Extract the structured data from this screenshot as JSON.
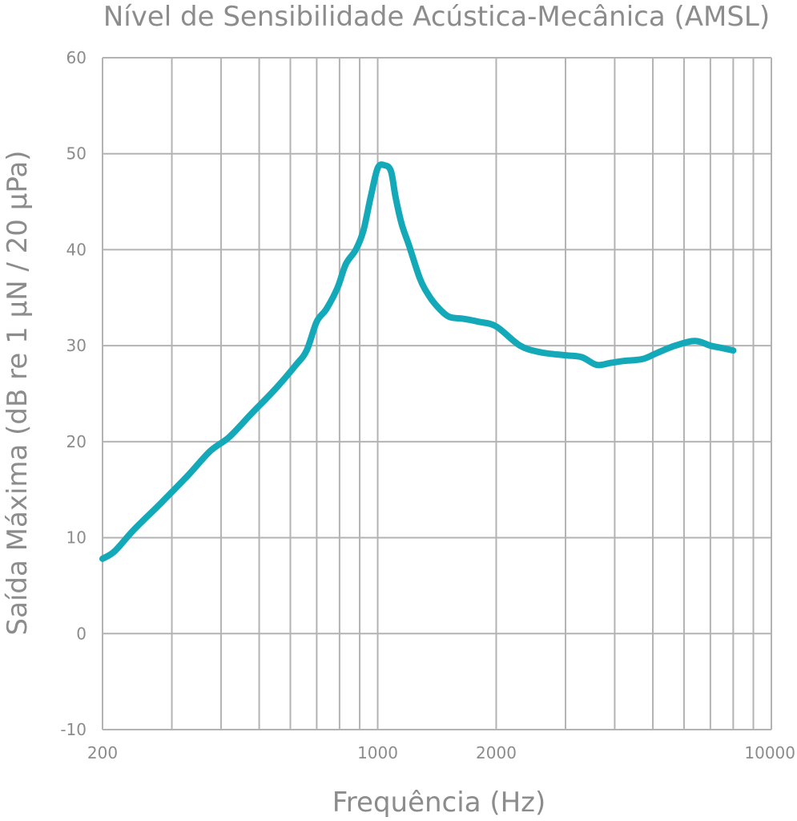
{
  "chart_data": {
    "type": "line",
    "title": "Nível de Sensibilidade Acústica-Mecânica (AMSL)",
    "xlabel": "Frequência (Hz)",
    "ylabel": "Saída Máxima (dB re 1 μN / 20 μPa)",
    "x_scale": "log",
    "xlim": [
      200,
      10000
    ],
    "ylim": [
      -10,
      60
    ],
    "x_ticks": [
      200,
      1000,
      2000,
      10000
    ],
    "x_tick_labels": [
      "200",
      "1000",
      "2000",
      "10000"
    ],
    "y_ticks": [
      -10,
      0,
      10,
      20,
      30,
      40,
      50,
      60
    ],
    "y_tick_labels": [
      "-10",
      "0",
      "10",
      "20",
      "30",
      "40",
      "50",
      "60"
    ],
    "x_minor_gridlines": [
      300,
      400,
      500,
      600,
      700,
      800,
      900,
      3000,
      4000,
      5000,
      6000,
      7000,
      8000,
      9000
    ],
    "grid": true,
    "colors": {
      "curve": "#14a9b8",
      "grid": "#b3b3b3",
      "text": "#8c8c8c"
    },
    "series": [
      {
        "x": [
          200,
          215,
          240,
          280,
          330,
          375,
          420,
          480,
          550,
          620,
          660,
          700,
          740,
          790,
          830,
          880,
          920,
          960,
          1000,
          1040,
          1080,
          1110,
          1150,
          1200,
          1280,
          1350,
          1430,
          1520,
          1650,
          1800,
          2000,
          2300,
          2600,
          3000,
          3300,
          3600,
          3900,
          4200,
          4700,
          5100,
          5700,
          6400,
          7000,
          7400,
          8000
        ],
        "y": [
          7.8,
          8.6,
          10.8,
          13.5,
          16.5,
          19.0,
          20.5,
          23.0,
          25.5,
          28.0,
          29.5,
          32.5,
          33.8,
          36.0,
          38.5,
          40.0,
          42.0,
          45.5,
          48.5,
          48.8,
          48.2,
          45.5,
          42.7,
          40.5,
          37.0,
          35.2,
          33.9,
          33.0,
          32.8,
          32.5,
          32.0,
          30.0,
          29.3,
          29.0,
          28.8,
          28.0,
          28.2,
          28.4,
          28.6,
          29.2,
          30.0,
          30.5,
          30.0,
          29.8,
          29.5
        ]
      }
    ]
  }
}
